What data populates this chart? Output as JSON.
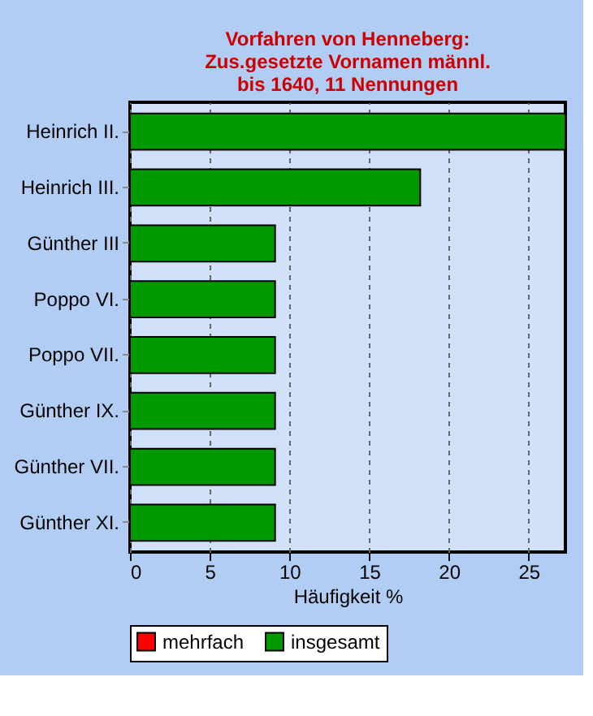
{
  "chart_data": {
    "type": "bar",
    "orientation": "horizontal",
    "title": "Vorfahren von Henneberg:\nZus.gesetzte Vornamen männl.\nbis 1640, 11 Nennungen",
    "xlabel": "Häufigkeit %",
    "categories": [
      "Heinrich II.",
      "Heinrich III.",
      "Günther III",
      "Poppo VI.",
      "Poppo VII.",
      "Günther IX.",
      "Günther VII.",
      "Günther XI."
    ],
    "series": [
      {
        "name": "mehrfach",
        "color": "#ff0000",
        "values": [
          null,
          null,
          null,
          null,
          null,
          null,
          null,
          null
        ]
      },
      {
        "name": "insgesamt",
        "color": "#009900",
        "values": [
          27.3,
          18.2,
          9.1,
          9.1,
          9.1,
          9.1,
          9.1,
          9.1
        ]
      }
    ],
    "xlim": [
      0,
      27.3
    ],
    "xticks": [
      0,
      5,
      10,
      15,
      20,
      25
    ],
    "grid": true,
    "legend": "bottom"
  }
}
